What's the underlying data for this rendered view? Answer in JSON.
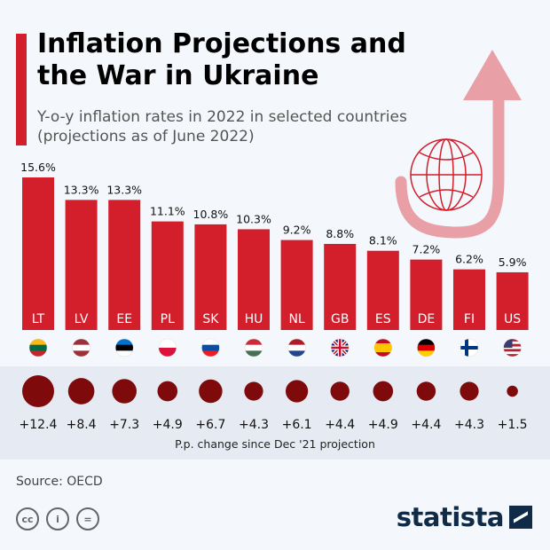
{
  "title": "Inflation Projections and the War in Ukraine",
  "subtitle": "Y-o-y inflation rates in 2022 in selected countries (projections as of June 2022)",
  "source": "Source: OECD",
  "brand": "statista",
  "colors": {
    "bar": "#d21f2b",
    "bubble": "#7f0a0c",
    "band": "#e6ebf3",
    "arrow": "#e8a0a6"
  },
  "icons": [
    "globe-icon",
    "arrow-up-icon",
    "cc-icon",
    "by-person-icon",
    "nd-equals-icon"
  ],
  "chart_data": [
    {
      "type": "bar",
      "categories": [
        "LT",
        "LV",
        "EE",
        "PL",
        "SK",
        "HU",
        "NL",
        "GB",
        "ES",
        "DE",
        "FI",
        "US"
      ],
      "values": [
        15.6,
        13.3,
        13.3,
        11.1,
        10.8,
        10.3,
        9.2,
        8.8,
        8.1,
        7.2,
        6.2,
        5.9
      ],
      "value_labels": [
        "15.6%",
        "13.3%",
        "13.3%",
        "11.1%",
        "10.8%",
        "10.3%",
        "9.2%",
        "8.8%",
        "8.1%",
        "7.2%",
        "6.2%",
        "5.9%"
      ],
      "unit": "%",
      "grid": false
    },
    {
      "type": "scatter",
      "subtype": "bubble",
      "categories": [
        "LT",
        "LV",
        "EE",
        "PL",
        "SK",
        "HU",
        "NL",
        "GB",
        "ES",
        "DE",
        "FI",
        "US"
      ],
      "values": [
        12.4,
        8.4,
        7.3,
        4.9,
        6.7,
        4.3,
        6.1,
        4.4,
        4.9,
        4.4,
        4.3,
        1.5
      ],
      "value_labels": [
        "+12.4",
        "+8.4",
        "+7.3",
        "+4.9",
        "+6.7",
        "+4.3",
        "+6.1",
        "+4.4",
        "+4.9",
        "+4.4",
        "+4.3",
        "+1.5"
      ],
      "xlabel": "P.p. change since Dec '21 projection"
    }
  ]
}
